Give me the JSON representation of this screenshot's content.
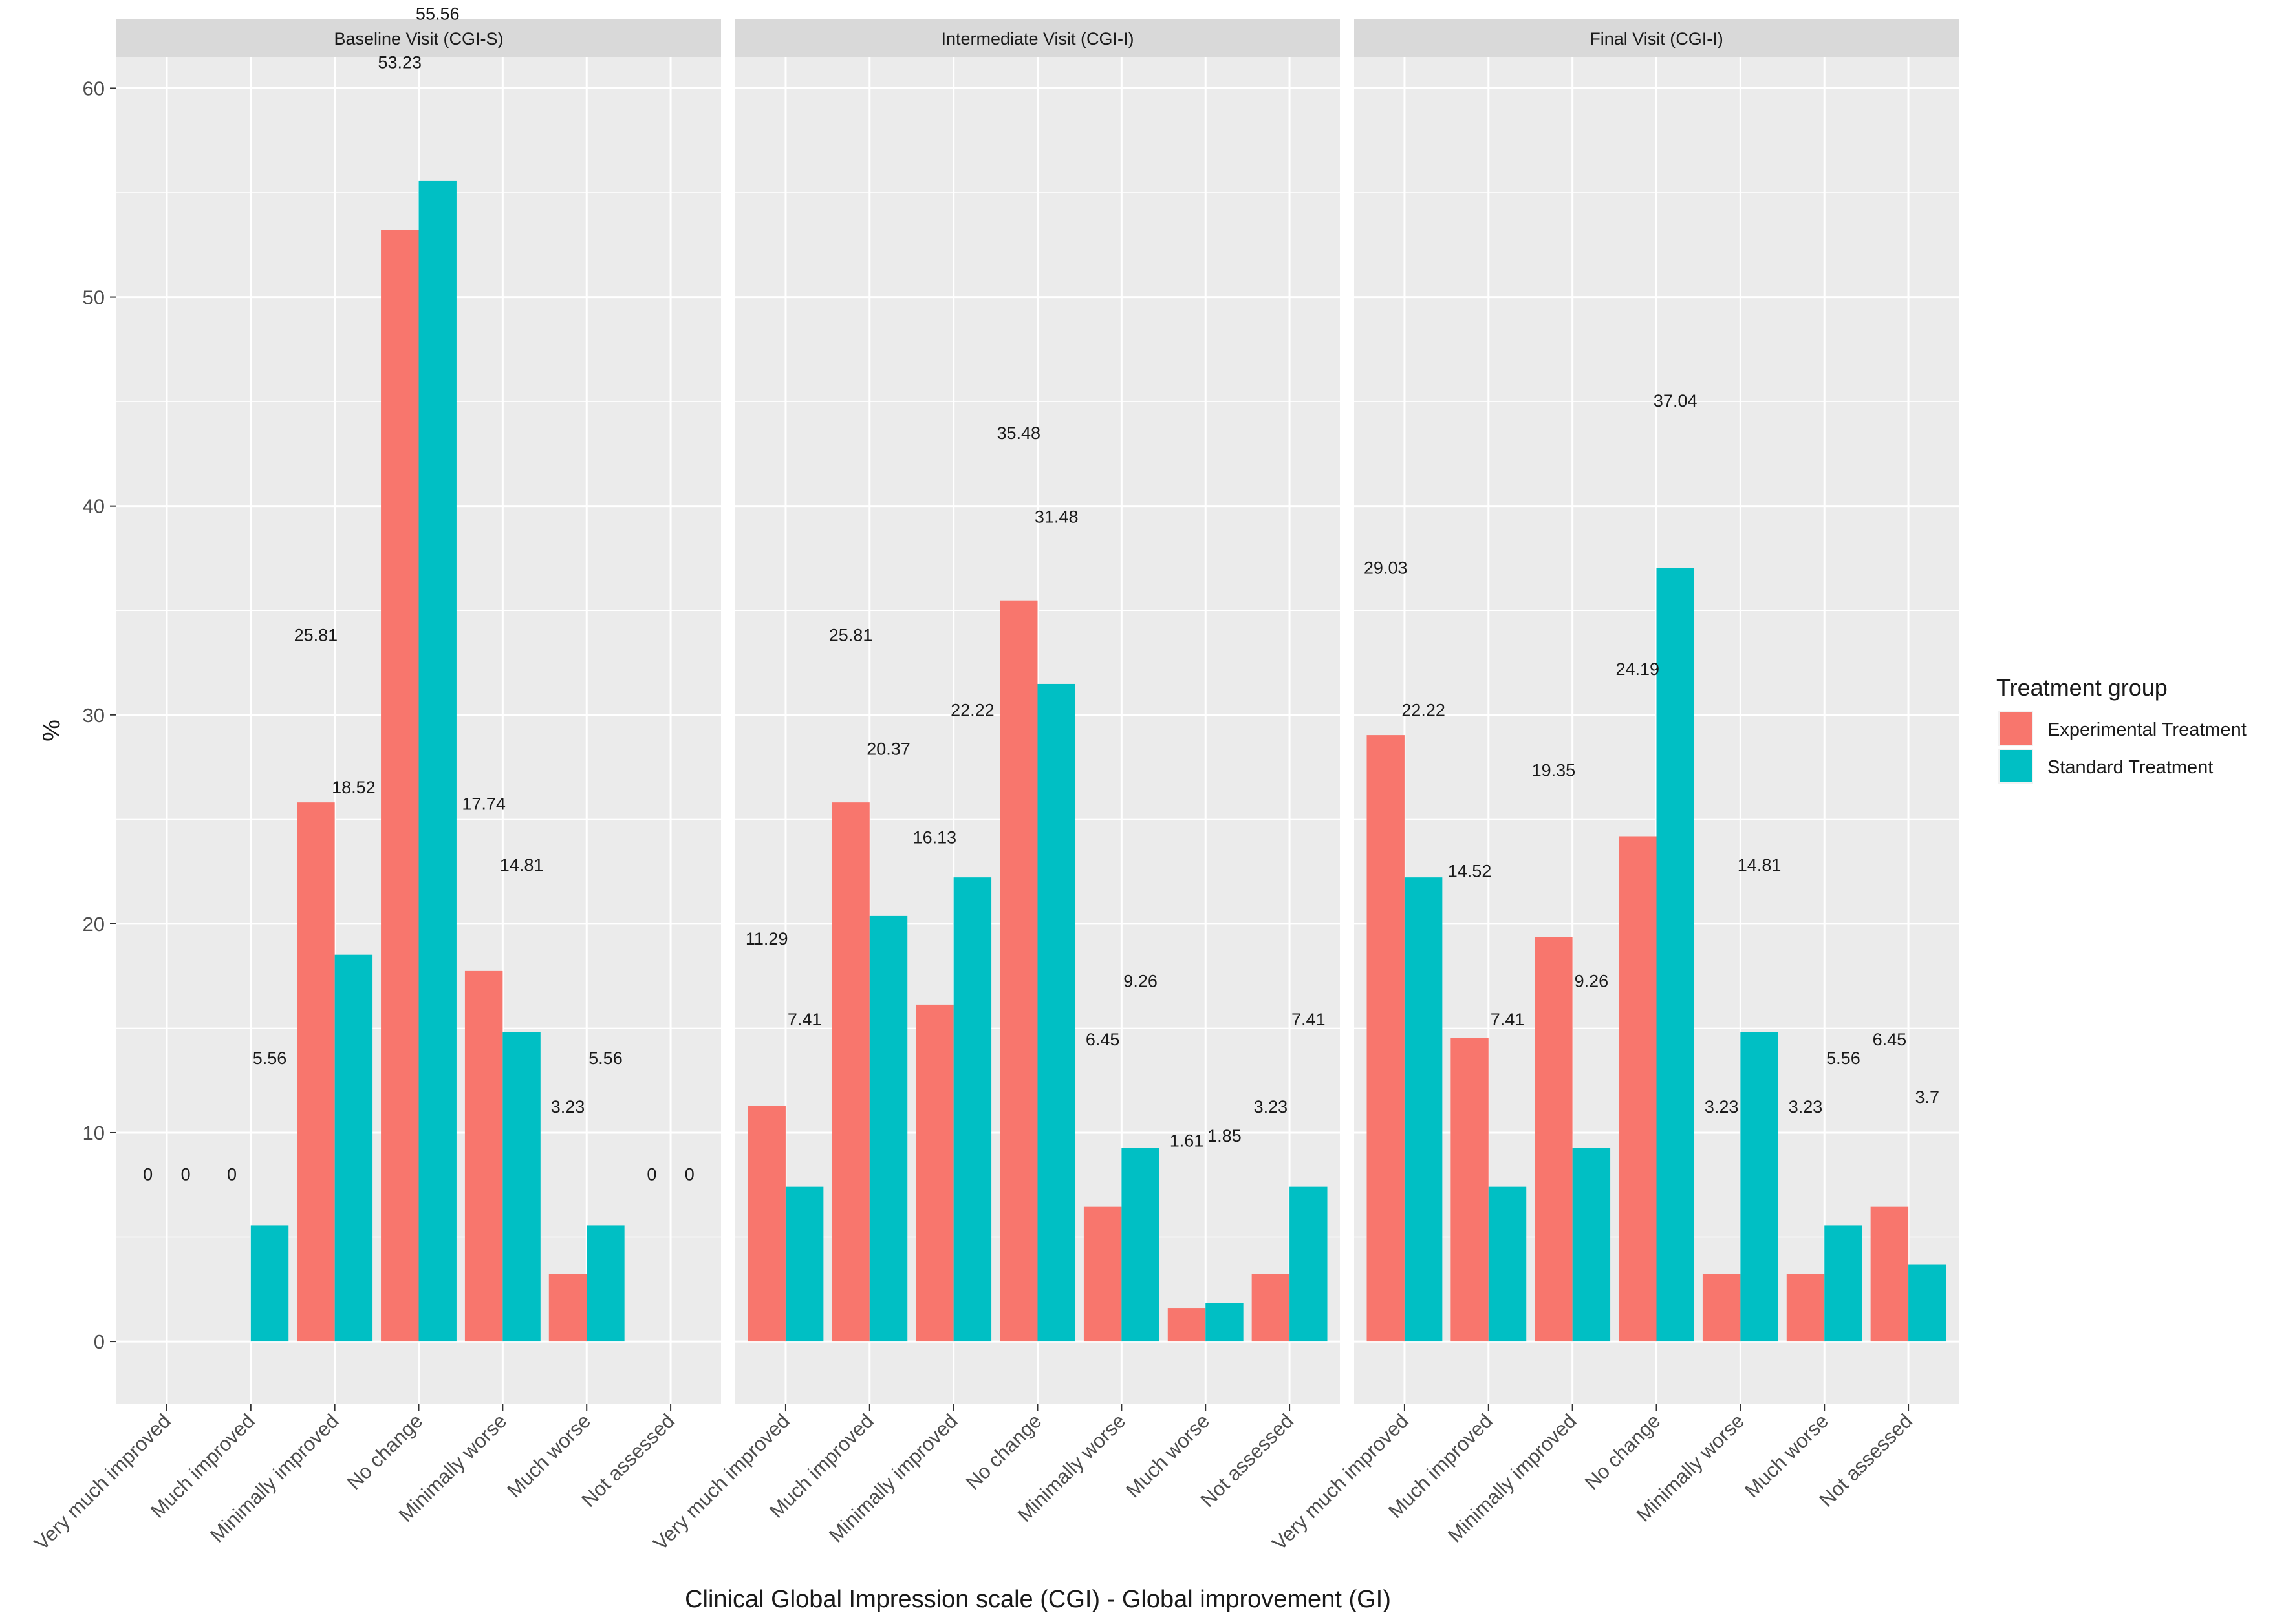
{
  "chart_data": {
    "type": "bar",
    "xlabel": "Clinical Global Impression scale (CGI) - Global improvement (GI)",
    "ylabel": "%",
    "ylim": [
      -3,
      61.5
    ],
    "yticks": [
      0,
      10,
      20,
      30,
      40,
      50,
      60
    ],
    "categories": [
      "Very much improved",
      "Much improved",
      "Minimally improved",
      "No change",
      "Minimally worse",
      "Much worse",
      "Not assessed"
    ],
    "legend": {
      "title": "Treatment group",
      "position": "right",
      "entries": [
        "Experimental Treatment",
        "Standard Treatment"
      ]
    },
    "colors": {
      "Experimental Treatment": "#F8766D",
      "Standard Treatment": "#00BFC4"
    },
    "panels": [
      {
        "title": "Baseline Visit (CGI-S)",
        "series": [
          {
            "name": "Experimental Treatment",
            "values": [
              0,
              0,
              25.81,
              53.23,
              17.74,
              3.23,
              0
            ]
          },
          {
            "name": "Standard Treatment",
            "values": [
              0,
              5.56,
              18.52,
              55.56,
              14.81,
              5.56,
              0
            ]
          }
        ]
      },
      {
        "title": "Intermediate Visit (CGI-I)",
        "series": [
          {
            "name": "Experimental Treatment",
            "values": [
              11.29,
              25.81,
              16.13,
              35.48,
              6.45,
              1.61,
              3.23
            ]
          },
          {
            "name": "Standard Treatment",
            "values": [
              7.41,
              20.37,
              22.22,
              31.48,
              9.26,
              1.85,
              7.41
            ]
          }
        ]
      },
      {
        "title": "Final Visit (CGI-I)",
        "series": [
          {
            "name": "Experimental Treatment",
            "values": [
              29.03,
              14.52,
              19.35,
              24.19,
              3.23,
              3.23,
              6.45
            ]
          },
          {
            "name": "Standard Treatment",
            "values": [
              22.22,
              7.41,
              9.26,
              37.04,
              14.81,
              5.56,
              3.7
            ]
          }
        ]
      }
    ]
  }
}
